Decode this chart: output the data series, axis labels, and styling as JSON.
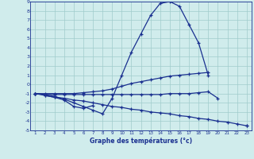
{
  "xlabel": "Graphe des températures (°c)",
  "bg_color": "#d0ecec",
  "grid_color": "#a0cccc",
  "line_color": "#1a3090",
  "ylim": [
    -5,
    9
  ],
  "xlim": [
    0.5,
    23.5
  ],
  "yticks": [
    -5,
    -4,
    -3,
    -2,
    -1,
    0,
    1,
    2,
    3,
    4,
    5,
    6,
    7,
    8,
    9
  ],
  "xticks": [
    1,
    2,
    3,
    4,
    5,
    6,
    7,
    8,
    9,
    10,
    11,
    12,
    13,
    14,
    15,
    16,
    17,
    18,
    19,
    20,
    21,
    22,
    23
  ],
  "upper_curve": [
    -1.0,
    -1.1,
    -1.3,
    -1.6,
    -2.0,
    -2.4,
    -2.8,
    -3.2,
    -1.5,
    1.0,
    3.5,
    5.5,
    7.5,
    8.8,
    9.0,
    8.5,
    6.5,
    4.5,
    1.0,
    null,
    null,
    null,
    null
  ],
  "mid_high_line": [
    -1.0,
    -1.0,
    -1.0,
    -1.0,
    -1.0,
    -0.9,
    -0.8,
    -0.7,
    -0.5,
    -0.2,
    0.1,
    0.3,
    0.5,
    0.7,
    0.9,
    1.0,
    1.1,
    1.2,
    1.3,
    null,
    null,
    null,
    null
  ],
  "flat_line": [
    -1.0,
    -1.1,
    -1.1,
    -1.1,
    -1.1,
    -1.1,
    -1.1,
    -1.1,
    -1.1,
    -1.1,
    -1.1,
    -1.1,
    -1.1,
    -1.1,
    -1.0,
    -1.0,
    -1.0,
    -0.9,
    -0.8,
    -1.5,
    null,
    null,
    null
  ],
  "dip_curve": [
    null,
    -1.2,
    -1.4,
    -1.7,
    -2.4,
    -2.6,
    -2.3,
    null,
    null,
    null,
    null,
    null,
    null,
    null,
    null,
    null,
    null,
    null,
    null,
    null,
    null,
    null,
    null
  ],
  "bottom_line": [
    -1.0,
    -1.2,
    -1.4,
    -1.5,
    -1.7,
    -1.8,
    -2.0,
    -2.2,
    -2.4,
    -2.5,
    -2.7,
    -2.8,
    -3.0,
    -3.1,
    -3.2,
    -3.4,
    -3.5,
    -3.7,
    -3.8,
    -4.0,
    -4.1,
    -4.3,
    -4.5
  ],
  "close_line": [
    -1.0,
    null,
    null,
    null,
    null,
    null,
    null,
    null,
    null,
    null,
    null,
    null,
    null,
    null,
    null,
    null,
    null,
    null,
    null,
    null,
    null,
    null,
    -4.5
  ]
}
